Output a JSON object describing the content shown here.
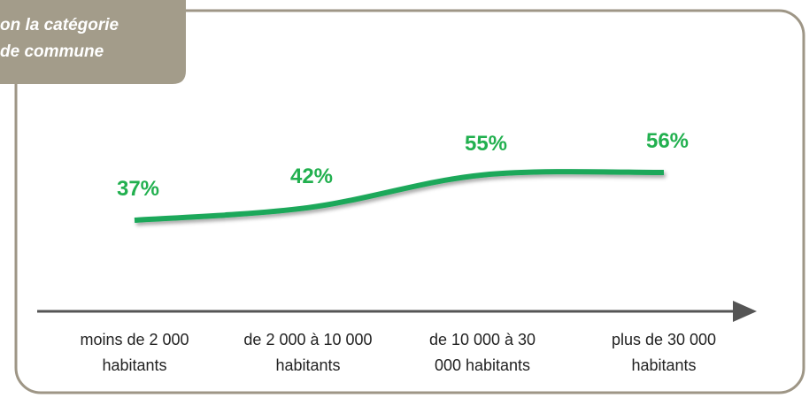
{
  "chart_data": {
    "type": "line",
    "title": [
      "on la catégorie",
      "de commune"
    ],
    "categories": [
      "moins de 2 000 habitants",
      "de 2 000 à 10 000 habitants",
      "de 10 000 à 30 000 habitants",
      "plus de 30 000 habitants"
    ],
    "values": [
      37,
      42,
      55,
      56
    ],
    "value_labels": [
      "37%",
      "42%",
      "55%",
      "56%"
    ],
    "color": "#1aa85a",
    "label_color": "#22b04f"
  }
}
